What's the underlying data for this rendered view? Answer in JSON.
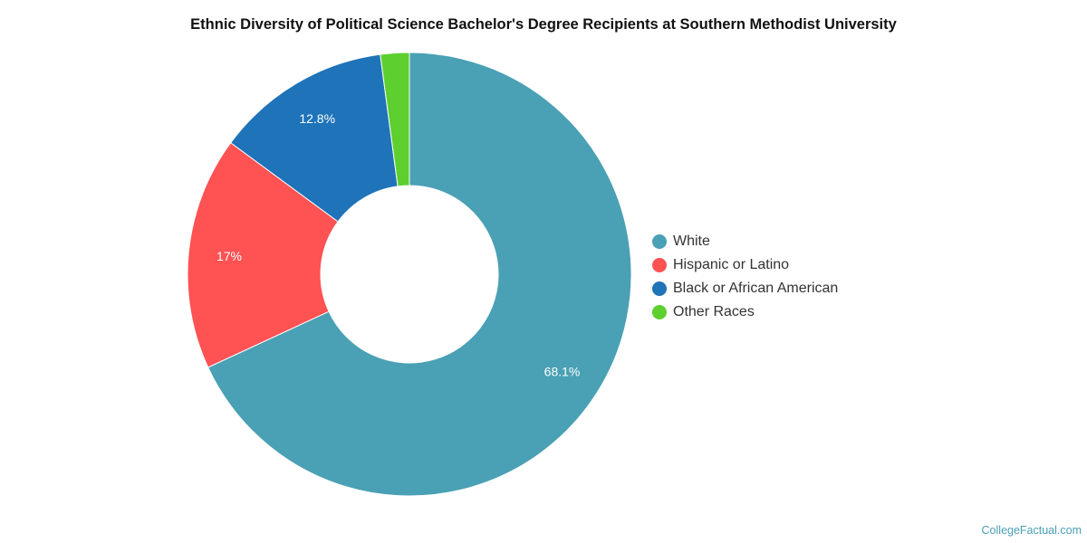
{
  "chart_data": {
    "type": "pie",
    "title": "Ethnic Diversity of Political Science Bachelor's Degree Recipients at Southern Methodist University",
    "donut": true,
    "legend_position": "right",
    "slices": [
      {
        "name": "White",
        "value": 68.1,
        "label": "68.1%",
        "color": "#4aa0b4"
      },
      {
        "name": "Hispanic or Latino",
        "value": 17.0,
        "label": "17%",
        "color": "#fe5253"
      },
      {
        "name": "Black or African American",
        "value": 12.8,
        "label": "12.8%",
        "color": "#1e73b9"
      },
      {
        "name": "Other Races",
        "value": 2.1,
        "label": "",
        "color": "#5dcf2e"
      }
    ]
  },
  "credit": "CollegeFactual.com"
}
